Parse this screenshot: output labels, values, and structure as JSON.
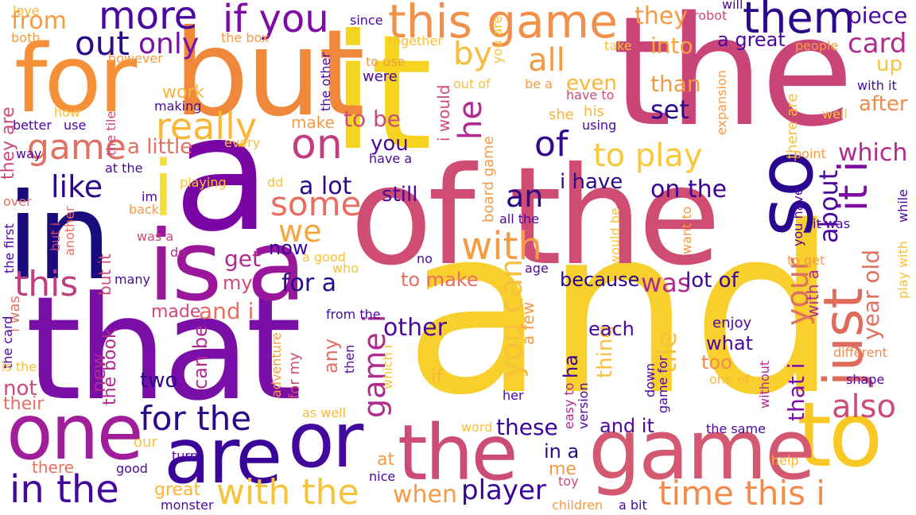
{
  "palette": {
    "dark_indigo": "#1d0a8a",
    "indigo": "#3e049c",
    "purple": "#6a00a8",
    "violet": "#8f0da4",
    "magenta": "#b12a90",
    "pink": "#cc4778",
    "rose": "#e16462",
    "orange": "#f2844b",
    "amber": "#fca636",
    "yellow": "#f0d52a"
  },
  "words": [
    {
      "text": "and",
      "color": "#f7d02e"
    },
    {
      "text": "it",
      "color": "#f4d41e"
    },
    {
      "text": "the",
      "color": "#c94577"
    },
    {
      "text": "a",
      "color": "#7a05a5"
    },
    {
      "text": "of the",
      "color": "#cf4d73"
    },
    {
      "text": "that",
      "color": "#7a0fa8"
    },
    {
      "text": "in",
      "color": "#1a0b7f"
    },
    {
      "text": "but",
      "color": "#f0883c"
    },
    {
      "text": "for",
      "color": "#f59039"
    },
    {
      "text": "is a",
      "color": "#9a179b"
    },
    {
      "text": "to",
      "color": "#f9c825"
    },
    {
      "text": "game",
      "color": "#d35870"
    },
    {
      "text": "the",
      "color": "#cc4b78"
    },
    {
      "text": "one",
      "color": "#a01e9a"
    },
    {
      "text": "are",
      "color": "#3a049a"
    },
    {
      "text": "or",
      "color": "#420a9c"
    },
    {
      "text": "so",
      "color": "#2a0690"
    },
    {
      "text": "i",
      "color": "#f5df3a"
    },
    {
      "text": "just",
      "color": "#df6b5c"
    },
    {
      "text": "it i",
      "color": "#7f0ba6"
    },
    {
      "text": "more",
      "color": "#4b079e"
    },
    {
      "text": "if you",
      "color": "#7f0ba6"
    },
    {
      "text": "this game",
      "color": "#f2904a"
    },
    {
      "text": "them",
      "color": "#2a0a8a"
    },
    {
      "text": "only",
      "color": "#7a0fa8"
    },
    {
      "text": "out",
      "color": "#2a0a8a"
    },
    {
      "text": "really",
      "color": "#f9b637"
    },
    {
      "text": "on",
      "color": "#c13d82"
    },
    {
      "text": "game",
      "color": "#e0705f"
    },
    {
      "text": "like",
      "color": "#2a0a8a"
    },
    {
      "text": "to play",
      "color": "#f9c83a"
    },
    {
      "text": "of",
      "color": "#32088f"
    },
    {
      "text": "an",
      "color": "#2a0a8a"
    },
    {
      "text": "with",
      "color": "#f59a45"
    },
    {
      "text": "all",
      "color": "#f59a45"
    },
    {
      "text": "by",
      "color": "#f7bb3d"
    },
    {
      "text": "some",
      "color": "#e86e61"
    },
    {
      "text": "we",
      "color": "#f9a43a"
    },
    {
      "text": "this",
      "color": "#c13d82"
    },
    {
      "text": "on the",
      "color": "#3a049a"
    },
    {
      "text": "card",
      "color": "#b02a8f"
    },
    {
      "text": "piece",
      "color": "#4b079e"
    },
    {
      "text": "they",
      "color": "#f59a45"
    },
    {
      "text": "a great",
      "color": "#4b079e"
    },
    {
      "text": "into",
      "color": "#f9a43a"
    },
    {
      "text": "in the",
      "color": "#42099b"
    },
    {
      "text": "with the",
      "color": "#f7c33b"
    },
    {
      "text": "time this i",
      "color": "#f38b4b"
    },
    {
      "text": "player",
      "color": "#3a049a"
    },
    {
      "text": "when",
      "color": "#f59a45"
    },
    {
      "text": "these",
      "color": "#3a049a"
    },
    {
      "text": "for the",
      "color": "#2a0a8a"
    },
    {
      "text": "also",
      "color": "#cc4b78"
    },
    {
      "text": "you can",
      "color": "#f9c03a"
    },
    {
      "text": "game i",
      "color": "#b02a8f"
    },
    {
      "text": "which",
      "color": "#b02a8f"
    },
    {
      "text": "about",
      "color": "#4b079e"
    },
    {
      "text": "year old",
      "color": "#e0705f"
    },
    {
      "text": "your",
      "color": "#e0705f"
    },
    {
      "text": "that i",
      "color": "#7f0ba6"
    },
    {
      "text": "was",
      "color": "#b02a8f"
    },
    {
      "text": "lot of",
      "color": "#3a049a"
    },
    {
      "text": "because",
      "color": "#2a0a8a"
    },
    {
      "text": "other",
      "color": "#4b079e"
    },
    {
      "text": "for a",
      "color": "#2a0a8a"
    },
    {
      "text": "to make",
      "color": "#e86e61"
    },
    {
      "text": "a lot",
      "color": "#2a0a8a"
    },
    {
      "text": "still",
      "color": "#4b079e"
    },
    {
      "text": "i have",
      "color": "#2a0a8a"
    },
    {
      "text": "he",
      "color": "#b02a8f"
    },
    {
      "text": "you",
      "color": "#4b079e"
    },
    {
      "text": "to be",
      "color": "#cc4b78"
    },
    {
      "text": "a little",
      "color": "#e0705f"
    },
    {
      "text": "even",
      "color": "#f9b637"
    },
    {
      "text": "set",
      "color": "#2a0a8a"
    },
    {
      "text": "after",
      "color": "#f38b4b"
    },
    {
      "text": "up",
      "color": "#f7c33b"
    },
    {
      "text": "than",
      "color": "#f59a45"
    },
    {
      "text": "from",
      "color": "#f59a45"
    },
    {
      "text": "work",
      "color": "#f9b637"
    },
    {
      "text": "get",
      "color": "#b02a8f"
    },
    {
      "text": "my",
      "color": "#cc4b78"
    },
    {
      "text": "now",
      "color": "#3a049a"
    },
    {
      "text": "and i",
      "color": "#e86e61"
    },
    {
      "text": "made",
      "color": "#cc4b78"
    },
    {
      "text": "two",
      "color": "#2a0a8a"
    },
    {
      "text": "thing",
      "color": "#f9c03a"
    },
    {
      "text": "tile",
      "color": "#f9c03a"
    },
    {
      "text": "each",
      "color": "#4b079e"
    },
    {
      "text": "what",
      "color": "#4b079e"
    },
    {
      "text": "too",
      "color": "#f38b4b"
    },
    {
      "text": "enjoy",
      "color": "#4b079e"
    },
    {
      "text": "new",
      "color": "#b02a8f"
    },
    {
      "text": "the book",
      "color": "#b02a8f"
    },
    {
      "text": "can be",
      "color": "#b02a8f"
    },
    {
      "text": "not",
      "color": "#cc4b78"
    },
    {
      "text": "their",
      "color": "#e86e61"
    },
    {
      "text": "any",
      "color": "#e86e61"
    },
    {
      "text": "if",
      "color": "#f9b637"
    },
    {
      "text": "ha",
      "color": "#3a049a"
    },
    {
      "text": "and it",
      "color": "#4b079e"
    },
    {
      "text": "in a",
      "color": "#2a0a8a"
    },
    {
      "text": "me",
      "color": "#f59a45"
    },
    {
      "text": "at",
      "color": "#f59a45"
    },
    {
      "text": "there",
      "color": "#e86e61"
    },
    {
      "text": "our",
      "color": "#f9c03a"
    },
    {
      "text": "great",
      "color": "#f9b637"
    },
    {
      "text": "nice",
      "color": "#4b079e"
    },
    {
      "text": "good",
      "color": "#4b079e"
    },
    {
      "text": "turn",
      "color": "#4b079e"
    },
    {
      "text": "monster",
      "color": "#4b079e"
    },
    {
      "text": "children",
      "color": "#f59a45"
    },
    {
      "text": "a bit",
      "color": "#4b079e"
    },
    {
      "text": "toy",
      "color": "#cc4b78"
    },
    {
      "text": "the same",
      "color": "#4b079e"
    },
    {
      "text": "help",
      "color": "#f9b637"
    },
    {
      "text": "shape",
      "color": "#4b079e"
    },
    {
      "text": "different",
      "color": "#f38b4b"
    },
    {
      "text": "one of",
      "color": "#f9b637"
    },
    {
      "text": "her",
      "color": "#4b079e"
    },
    {
      "text": "word",
      "color": "#f9c03a"
    },
    {
      "text": "as well",
      "color": "#f9b637"
    },
    {
      "text": "version",
      "color": "#4b079e"
    },
    {
      "text": "easy to",
      "color": "#b02a8f"
    },
    {
      "text": "down",
      "color": "#4b079e"
    },
    {
      "text": "game for",
      "color": "#4b079e"
    },
    {
      "text": "without",
      "color": "#b02a8f"
    },
    {
      "text": "with a",
      "color": "#b02a8f"
    },
    {
      "text": "no",
      "color": "#4b079e"
    },
    {
      "text": "age",
      "color": "#4b079e"
    },
    {
      "text": "a few",
      "color": "#f59a45"
    },
    {
      "text": "board game",
      "color": "#f59a45"
    },
    {
      "text": "all the",
      "color": "#4b079e"
    },
    {
      "text": "would be",
      "color": "#f9c03a"
    },
    {
      "text": "want to",
      "color": "#f59a45"
    },
    {
      "text": "you have",
      "color": "#4b079e"
    },
    {
      "text": "it was",
      "color": "#4b079e"
    },
    {
      "text": "while",
      "color": "#4b079e"
    },
    {
      "text": "play with",
      "color": "#f9c03a"
    },
    {
      "text": "to get",
      "color": "#f59a45"
    },
    {
      "text": "point",
      "color": "#f59a45"
    },
    {
      "text": "well",
      "color": "#f9c03a"
    },
    {
      "text": "expansion",
      "color": "#f59a45"
    },
    {
      "text": "there are",
      "color": "#f9c03a"
    },
    {
      "text": "with it",
      "color": "#4b079e"
    },
    {
      "text": "people",
      "color": "#f59a45"
    },
    {
      "text": "take",
      "color": "#f9c03a"
    },
    {
      "text": "robot",
      "color": "#cc4b78"
    },
    {
      "text": "will",
      "color": "#4b079e"
    },
    {
      "text": "since",
      "color": "#4b079e"
    },
    {
      "text": "together",
      "color": "#f9c03a"
    },
    {
      "text": "to use",
      "color": "#f59a45"
    },
    {
      "text": "were",
      "color": "#4b079e"
    },
    {
      "text": "out of",
      "color": "#f9c03a"
    },
    {
      "text": "be a",
      "color": "#f59a45"
    },
    {
      "text": "have to",
      "color": "#cc4b78"
    },
    {
      "text": "his",
      "color": "#f9b637"
    },
    {
      "text": "she",
      "color": "#f9b637"
    },
    {
      "text": "using",
      "color": "#4b079e"
    },
    {
      "text": "you are",
      "color": "#f9c03a"
    },
    {
      "text": "i would",
      "color": "#cc4b78"
    },
    {
      "text": "make",
      "color": "#f59a45"
    },
    {
      "text": "the other",
      "color": "#4b079e"
    },
    {
      "text": "the box",
      "color": "#f59a45"
    },
    {
      "text": "love",
      "color": "#f9b637"
    },
    {
      "text": "both",
      "color": "#f59a45"
    },
    {
      "text": "however",
      "color": "#f59a45"
    },
    {
      "text": "how",
      "color": "#f9c03a"
    },
    {
      "text": "making",
      "color": "#4b079e"
    },
    {
      "text": "the tile",
      "color": "#cc4b78"
    },
    {
      "text": "better",
      "color": "#4b079e"
    },
    {
      "text": "use",
      "color": "#4b079e"
    },
    {
      "text": "every",
      "color": "#f9c03a"
    },
    {
      "text": "they are",
      "color": "#cc4b78"
    },
    {
      "text": "way",
      "color": "#4b079e"
    },
    {
      "text": "at the",
      "color": "#4b079e"
    },
    {
      "text": "have a",
      "color": "#4b079e"
    },
    {
      "text": "playing",
      "color": "#f9c03a"
    },
    {
      "text": "dd",
      "color": "#f9c03a"
    },
    {
      "text": "im",
      "color": "#4b079e"
    },
    {
      "text": "back",
      "color": "#f59a45"
    },
    {
      "text": "over",
      "color": "#e86e61"
    },
    {
      "text": "but i",
      "color": "#cc4b78"
    },
    {
      "text": "another",
      "color": "#e86e61"
    },
    {
      "text": "the first",
      "color": "#4b079e"
    },
    {
      "text": "was a",
      "color": "#cc4b78"
    },
    {
      "text": "do",
      "color": "#b02a8f"
    },
    {
      "text": "a good",
      "color": "#f9c03a"
    },
    {
      "text": "who",
      "color": "#f9c03a"
    },
    {
      "text": "but it",
      "color": "#cc4b78"
    },
    {
      "text": "many",
      "color": "#4b079e"
    },
    {
      "text": "from the",
      "color": "#4b079e"
    },
    {
      "text": "i was",
      "color": "#e86e61"
    },
    {
      "text": "the card",
      "color": "#4b079e"
    },
    {
      "text": "is the",
      "color": "#f9c03a"
    },
    {
      "text": "adventure",
      "color": "#f59a45"
    },
    {
      "text": "for my",
      "color": "#cc4b78"
    },
    {
      "text": "then",
      "color": "#4b079e"
    },
    {
      "text": "which i",
      "color": "#f9c03a"
    }
  ]
}
